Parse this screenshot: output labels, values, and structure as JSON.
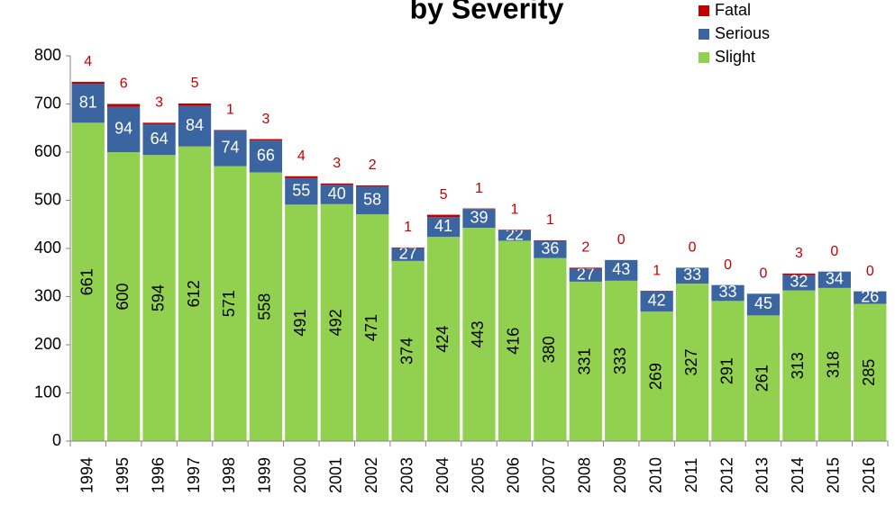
{
  "chart_data": {
    "type": "stacked_bar",
    "title": "by Severity",
    "categories": [
      "1994",
      "1995",
      "1996",
      "1997",
      "1998",
      "1999",
      "2000",
      "2001",
      "2002",
      "2003",
      "2004",
      "2005",
      "2006",
      "2007",
      "2008",
      "2009",
      "2010",
      "2011",
      "2012",
      "2013",
      "2014",
      "2015",
      "2016"
    ],
    "series": [
      {
        "name": "Slight",
        "color": "#92d050",
        "values": [
          661,
          600,
          594,
          612,
          571,
          558,
          491,
          492,
          471,
          374,
          424,
          443,
          416,
          380,
          331,
          333,
          269,
          327,
          291,
          261,
          313,
          318,
          285
        ]
      },
      {
        "name": "Serious",
        "color": "#3a65a0",
        "values": [
          81,
          94,
          64,
          84,
          74,
          66,
          55,
          40,
          58,
          27,
          41,
          39,
          22,
          36,
          27,
          43,
          42,
          33,
          33,
          45,
          32,
          34,
          26
        ]
      },
      {
        "name": "Fatal",
        "color": "#c00000",
        "values": [
          4,
          6,
          3,
          5,
          1,
          3,
          4,
          3,
          2,
          1,
          5,
          1,
          1,
          1,
          2,
          0,
          1,
          0,
          0,
          0,
          3,
          0,
          0
        ]
      }
    ],
    "ylim": [
      0,
      800
    ],
    "yticks": [
      0,
      100,
      200,
      300,
      400,
      500,
      600,
      700,
      800
    ],
    "grid": false
  }
}
